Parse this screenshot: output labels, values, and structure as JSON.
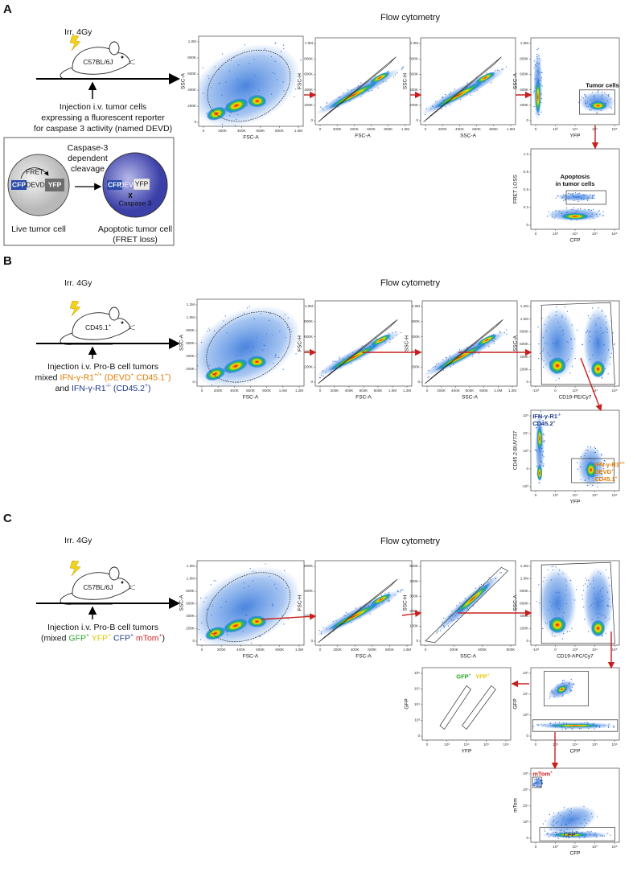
{
  "panels": [
    {
      "letter": "A",
      "irradiation": "Irr. 4Gy",
      "mouse": [
        {
          "text": "C57BL/6J"
        }
      ],
      "flow_title": "Flow cytometry",
      "injection": [
        [
          {
            "text": "Injection i.v. tumor cells"
          }
        ],
        [
          {
            "text": "expressing a fluorescent reporter"
          }
        ],
        [
          {
            "text": "for caspase 3 activity (named DEVD)"
          }
        ]
      ],
      "plots": [
        {
          "x_label": "FSC-A",
          "y_label": "SSC-A",
          "x_ticks": [
            "0",
            "200K",
            "400K",
            "600K",
            "800K",
            "1.0M"
          ],
          "y_ticks": [
            "0",
            "200K",
            "400K",
            "600K",
            "800K",
            "1.0M"
          ]
        },
        {
          "x_label": "FSC-A",
          "y_label": "FSC-H",
          "x_ticks": [
            "0",
            "200K",
            "400K",
            "600K",
            "800K",
            "1.0M"
          ],
          "y_ticks": [
            "0",
            "200K",
            "400K",
            "600K",
            "800K",
            "1.0M"
          ]
        },
        {
          "x_label": "SSC-A",
          "y_label": "SSC-H",
          "x_ticks": [
            "0",
            "200K",
            "400K",
            "600K",
            "800K",
            "1.0M"
          ],
          "y_ticks": [
            "0",
            "200K",
            "400K",
            "600K",
            "800K",
            "1.0M"
          ]
        },
        {
          "x_label": "YFP",
          "y_label": "SSC-A",
          "x_ticks": [
            "0",
            "10³",
            "10⁴",
            "10⁵",
            "10⁶"
          ],
          "y_ticks": [
            "0",
            "200K",
            "400K",
            "600K",
            "800K",
            "1.0M"
          ],
          "annotations": [
            {
              "lines": [
                [
                  {
                    "text": "Tumor cells"
                  }
                ]
              ],
              "color": "#111111"
            }
          ]
        },
        {
          "x_label": "CFP",
          "y_label": "FRET LOSS",
          "x_ticks": [
            "0",
            "10³",
            "10⁴",
            "10⁵",
            "10⁶"
          ],
          "y_ticks": [
            "0",
            "0.3",
            "0.6",
            "0.9",
            "1.2"
          ],
          "annotations": [
            {
              "lines": [
                [
                  {
                    "text": "Apoptosis"
                  }
                ],
                [
                  {
                    "text": "in tumor cells"
                  }
                ]
              ],
              "color": "#111111"
            }
          ]
        }
      ]
    },
    {
      "letter": "B",
      "irradiation": "Irr. 4Gy",
      "mouse": [
        {
          "text": "CD45.1"
        },
        {
          "text": "+",
          "sup": true
        }
      ],
      "flow_title": "Flow cytometry",
      "injection": [
        [
          {
            "text": "Injection i.v. Pro-B cell tumors"
          }
        ],
        [
          {
            "text": "mixed "
          },
          {
            "text": "IFN-γ-R1",
            "color": "#e07b00"
          },
          {
            "text": "+/+",
            "sup": true,
            "color": "#e07b00"
          },
          {
            "text": " (DEVD",
            "color": "#e07b00"
          },
          {
            "text": "+",
            "sup": true,
            "color": "#e07b00"
          },
          {
            "text": " CD45.1",
            "color": "#e07b00"
          },
          {
            "text": "+",
            "sup": true,
            "color": "#e07b00"
          },
          {
            "text": ")",
            "color": "#e07b00"
          }
        ],
        [
          {
            "text": "and "
          },
          {
            "text": "IFN-γ-R1",
            "color": "#1f3a8a"
          },
          {
            "text": "-/-",
            "sup": true,
            "color": "#1f3a8a"
          },
          {
            "text": " (CD45.2",
            "color": "#1f3a8a"
          },
          {
            "text": "+",
            "sup": true,
            "color": "#1f3a8a"
          },
          {
            "text": ")",
            "color": "#1f3a8a"
          }
        ]
      ],
      "plots": [
        {
          "x_label": "FSC-A",
          "y_label": "SSC-A",
          "x_ticks": [
            "0",
            "200K",
            "400K",
            "600K",
            "800K",
            "1.0M",
            "1.2M"
          ],
          "y_ticks": [
            "0",
            "200K",
            "400K",
            "600K",
            "800K",
            "1.0M",
            "1.2M"
          ]
        },
        {
          "x_label": "FSC-A",
          "y_label": "FSC-H",
          "x_ticks": [
            "0",
            "200K",
            "400K",
            "600K",
            "800K",
            "1.0M",
            "1.2M"
          ],
          "y_ticks": [
            "0",
            "200K",
            "400K",
            "600K",
            "800K",
            "1.0M"
          ]
        },
        {
          "x_label": "SSC-A",
          "y_label": "SSC-H",
          "x_ticks": [
            "0",
            "200K",
            "400K",
            "600K",
            "800K",
            "1.0M",
            "1.2M"
          ],
          "y_ticks": [
            "0",
            "200K",
            "400K",
            "600K",
            "800K",
            "1.0M"
          ]
        },
        {
          "x_label": "CD19-PE/Cy7",
          "y_label": "SSC-A",
          "x_ticks": [
            "-10³",
            "0",
            "10³",
            "10⁴",
            "10⁵"
          ],
          "y_ticks": [
            "0",
            "200K",
            "400K",
            "600K",
            "800K",
            "1.0M",
            "1.2M"
          ]
        },
        {
          "x_label": "YFP",
          "y_label": "CD45.2-BUV737",
          "x_ticks": [
            "0",
            "10³",
            "10⁴",
            "10⁵",
            "10⁶"
          ],
          "y_ticks": [
            "-10³",
            "0",
            "10³",
            "10⁴",
            "10⁵"
          ],
          "annotations": [
            {
              "lines": [
                [
                  {
                    "text": "IFN-γ-R1"
                  },
                  {
                    "text": "-/-",
                    "sup": true
                  }
                ],
                [
                  {
                    "text": "CD45.2"
                  },
                  {
                    "text": "+",
                    "sup": true
                  }
                ]
              ],
              "color": "#1f3a8a"
            },
            {
              "lines": [
                [
                  {
                    "text": "IFN-γ-R1"
                  },
                  {
                    "text": "+/+",
                    "sup": true
                  }
                ],
                [
                  {
                    "text": "DEVD"
                  },
                  {
                    "text": "+",
                    "sup": true
                  }
                ],
                [
                  {
                    "text": "CD45.1"
                  },
                  {
                    "text": "+",
                    "sup": true
                  }
                ]
              ],
              "color": "#e07b00"
            }
          ]
        }
      ]
    },
    {
      "letter": "C",
      "irradiation": "Irr. 4Gy",
      "mouse": [
        {
          "text": "C57BL/6J"
        }
      ],
      "flow_title": "Flow cytometry",
      "injection": [
        [
          {
            "text": "Injection i.v. Pro-B cell tumors"
          }
        ],
        [
          {
            "text": "(mixed "
          },
          {
            "text": "GFP",
            "color": "#2aa52a"
          },
          {
            "text": "+",
            "sup": true,
            "color": "#2aa52a"
          },
          {
            "text": " "
          },
          {
            "text": "YFP",
            "color": "#e6c800"
          },
          {
            "text": "+",
            "sup": true,
            "color": "#e6c800"
          },
          {
            "text": " "
          },
          {
            "text": "CFP",
            "color": "#1f3a8a"
          },
          {
            "text": "+",
            "sup": true,
            "color": "#1f3a8a"
          },
          {
            "text": " "
          },
          {
            "text": "mTom",
            "color": "#d81e1e"
          },
          {
            "text": "+",
            "sup": true,
            "color": "#d81e1e"
          },
          {
            "text": ")"
          }
        ]
      ],
      "plots": [
        {
          "x_label": "FSC-A",
          "y_label": "SSC-A",
          "x_ticks": [
            "0",
            "200K",
            "400K",
            "600K",
            "800K",
            "1.0M"
          ],
          "y_ticks": [
            "0",
            "200K",
            "400K",
            "600K",
            "800K",
            "1.0M",
            "1.2M"
          ]
        },
        {
          "x_label": "FSC-A",
          "y_label": "FSC-H",
          "x_ticks": [
            "0",
            "200K",
            "400K",
            "600K",
            "800K",
            "1.0M"
          ],
          "y_ticks": [
            "0",
            "200K",
            "400K",
            "600K"
          ]
        },
        {
          "x_label": "SSC-A",
          "y_label": "SSC-H",
          "x_ticks": [
            "0",
            "300K",
            "600K",
            "900K"
          ],
          "y_ticks": [
            "0",
            "100K",
            "200K",
            "300K",
            "400K",
            "500K"
          ]
        },
        {
          "x_label": "CD19-APC/Cy7",
          "y_label": "SSC-A",
          "x_ticks": [
            "-10³",
            "0",
            "10³",
            "10⁴",
            "10⁵"
          ],
          "y_ticks": [
            "0",
            "200K",
            "400K",
            "600K",
            "800K",
            "1.0M",
            "1.2M"
          ]
        },
        {
          "x_label": "CFP",
          "y_label": "GFP",
          "x_ticks": [
            "0",
            "10³",
            "10⁴",
            "10⁵",
            "10⁶"
          ],
          "y_ticks": [
            "0",
            "10³",
            "10⁴",
            "10⁵"
          ]
        },
        {
          "x_label": "YFP",
          "y_label": "GFP",
          "x_ticks": [
            "0",
            "10³",
            "10⁴",
            "10⁵",
            "10⁶"
          ],
          "y_ticks": [
            "0",
            "10³",
            "10⁴",
            "10⁵",
            "10⁶"
          ],
          "annotations": [
            {
              "lines": [
                [
                  {
                    "text": "GFP"
                  },
                  {
                    "text": "+",
                    "sup": true
                  }
                ]
              ],
              "color": "#2aa52a"
            },
            {
              "lines": [
                [
                  {
                    "text": "YFP"
                  },
                  {
                    "text": "+",
                    "sup": true
                  }
                ]
              ],
              "color": "#e6c800"
            }
          ]
        },
        {
          "x_label": "CFP",
          "y_label": "mTom",
          "x_ticks": [
            "0",
            "10³",
            "10⁴",
            "10⁵",
            "10⁶"
          ],
          "y_ticks": [
            "0",
            "10³",
            "10⁴",
            "10⁵",
            "10⁶"
          ],
          "annotations": [
            {
              "lines": [
                [
                  {
                    "text": "mTom"
                  },
                  {
                    "text": "+",
                    "sup": true
                  }
                ]
              ],
              "color": "#d81e1e"
            },
            {
              "lines": [
                [
                  {
                    "text": "CFP"
                  },
                  {
                    "text": "+",
                    "sup": true
                  }
                ]
              ],
              "color": "#1f3a8a"
            }
          ]
        }
      ]
    }
  ],
  "reporter": {
    "fret": "FRET",
    "cfp": "CFP",
    "devd": "DEVD",
    "yfp": "YFP",
    "cleavage": [
      "Caspase-3",
      "dependent",
      "cleavage"
    ],
    "live_label": "Live tumor cell",
    "enzyme": "Caspase 3",
    "apoptotic_label": [
      "Apoptotic tumor cell",
      "(FRET loss)"
    ]
  }
}
